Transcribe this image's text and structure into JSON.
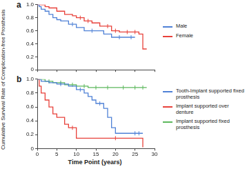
{
  "chart_data": [
    {
      "type": "line",
      "title": "a",
      "ylabel": "Cumulative Survival Rate of Complication-free Prosthesis",
      "xlim": [
        0,
        30
      ],
      "xticks": [
        0,
        5,
        10,
        15,
        20,
        25,
        30
      ],
      "ylim": [
        0,
        1
      ],
      "yticks": [
        0,
        0.2,
        0.4,
        0.6,
        0.8,
        {
          "value": 1,
          "label": "1.0"
        }
      ],
      "grid": false,
      "tick_labels": "y",
      "legend": "right",
      "line_style": "steps",
      "series": [
        {
          "name": "Male",
          "color": "#4f81d6",
          "x": [
            0,
            0.5,
            1,
            2,
            3,
            4,
            5,
            6,
            8,
            10,
            12,
            17,
            19,
            25
          ],
          "values": [
            1,
            0.97,
            0.93,
            0.9,
            0.85,
            0.8,
            0.77,
            0.75,
            0.7,
            0.65,
            0.6,
            0.55,
            0.5,
            0.5
          ],
          "censored": [
            9,
            14,
            21,
            24
          ]
        },
        {
          "name": "Female",
          "color": "#e8413a",
          "x": [
            0,
            2,
            3,
            5,
            7,
            9,
            10,
            12,
            14,
            16,
            19,
            21,
            26,
            27,
            28
          ],
          "values": [
            1,
            0.97,
            0.95,
            0.9,
            0.85,
            0.83,
            0.8,
            0.75,
            0.72,
            0.67,
            0.6,
            0.58,
            0.55,
            0.32,
            0.32
          ],
          "censored": [
            11,
            13,
            18,
            20,
            23,
            25
          ]
        }
      ]
    },
    {
      "type": "line",
      "title": "b",
      "xlabel": "Time Point (years)",
      "xlim": [
        0,
        30
      ],
      "xticks": [
        0,
        5,
        10,
        15,
        20,
        25,
        30
      ],
      "ylim": [
        0,
        1
      ],
      "yticks": [
        0,
        0.2,
        0.4,
        0.6,
        0.8,
        {
          "value": 1,
          "label": "1.0"
        }
      ],
      "grid": false,
      "tick_labels": true,
      "legend": "right",
      "line_style": "steps",
      "series": [
        {
          "name": "Tooth-Implant supported fixed prosthesis",
          "color": "#4f81d6",
          "x": [
            0,
            1,
            3,
            5,
            8,
            10,
            12,
            13,
            14,
            15,
            17,
            18,
            19,
            20,
            27
          ],
          "values": [
            1,
            0.97,
            0.95,
            0.93,
            0.9,
            0.85,
            0.8,
            0.75,
            0.7,
            0.65,
            0.58,
            0.45,
            0.3,
            0.22,
            0.22
          ],
          "censored": [
            6,
            11,
            16,
            25,
            26
          ]
        },
        {
          "name": "Implant supported over denture",
          "color": "#e8413a",
          "x": [
            0,
            0.5,
            1,
            2,
            3,
            4,
            5,
            7,
            8,
            10,
            26,
            27
          ],
          "values": [
            1,
            0.9,
            0.8,
            0.7,
            0.6,
            0.5,
            0.45,
            0.35,
            0.3,
            0.15,
            0.15,
            0.02
          ],
          "censored": [
            9,
            20
          ]
        },
        {
          "name": "Implant supported fixed prosthesis",
          "color": "#5cb85c",
          "x": [
            0,
            2,
            4,
            7,
            10,
            13,
            28
          ],
          "values": [
            1,
            0.97,
            0.95,
            0.92,
            0.9,
            0.88,
            0.88
          ],
          "censored": [
            3,
            6,
            9,
            12,
            15,
            18,
            22,
            25,
            27
          ]
        }
      ]
    }
  ]
}
